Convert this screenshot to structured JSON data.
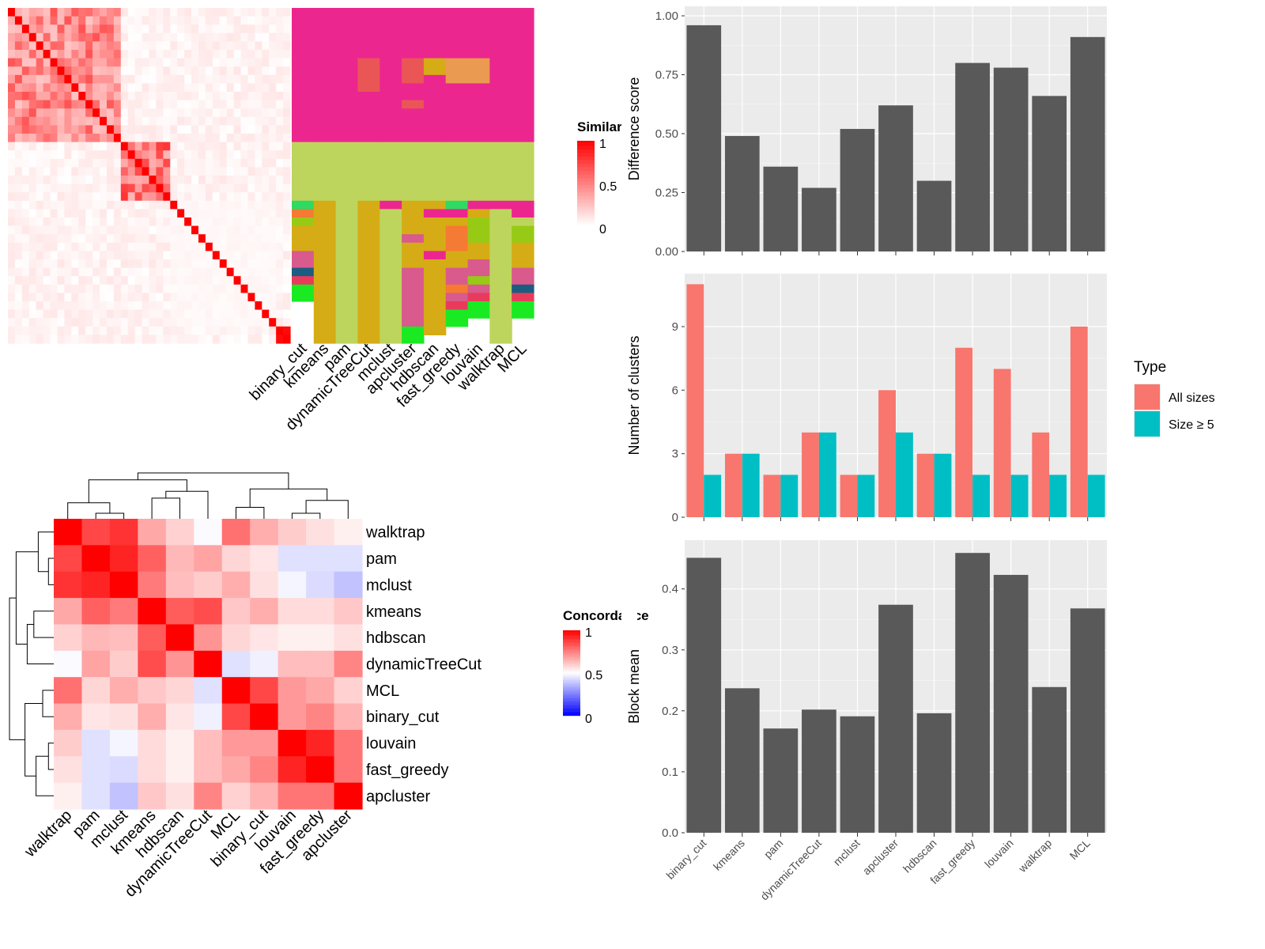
{
  "chart_data": [
    {
      "type": "heatmap",
      "id": "similarity_heatmap",
      "legend": {
        "title": "Similarity",
        "ticks": [
          "0",
          "0.5",
          "1"
        ],
        "colors": {
          "low": "#ffffff",
          "high": "#ff0000"
        }
      },
      "methods": [
        "binary_cut",
        "kmeans",
        "pam",
        "dynamicTreeCut",
        "mclust",
        "apcluster",
        "hdbscan",
        "fast_greedy",
        "louvain",
        "walktrap",
        "MCL"
      ],
      "term_blocks": [
        {
          "rows": 16,
          "inner": 0.45,
          "diag": 1.0
        },
        {
          "rows": 7,
          "inner": 0.55,
          "diag": 1.0
        },
        {
          "rows": 15,
          "inner": 0.03,
          "diag": 1.0
        },
        {
          "rows": 2,
          "inner": 0.9,
          "diag": 1.0
        }
      ],
      "background_similarity": 0.06,
      "cluster_palette": {
        "A": "#ec268f",
        "B": "#bdd55c",
        "C": "#d5ac15",
        "D": "#ea5656",
        "E": "#d9a02a",
        "F": "#2eda62",
        "G": "#f57a33",
        "H": "#97ca15",
        "I": "#d95a8c",
        "J": "#1c5c80",
        "K": "#e83b5c",
        "L": "#1aea22",
        "M": "#e04a3f",
        "N": "#eb9a52"
      },
      "assignment_runs": [
        [
          "A:16,B:7,F:1,G:1,H:1,C:3,I:2,J:1,K:1,L:2"
        ],
        [
          "A:16,B:7,C:15,C:2"
        ],
        [
          "A:16,B:7,B:15,B:2"
        ],
        [
          "A:6,D:4,A:6,B:7,C:15,C:2"
        ],
        [
          "A:16,B:7,A:1,B:14,B:2"
        ],
        [
          "A:6,D:3,A:2,D:1,A:4,B:7,C:4,I:1,C:3,I:5,I:2,L:2"
        ],
        [
          "A:6,C:2,A:8,B:7,C:1,A:1,C:4,A:1,C:1,C:6,C:2"
        ],
        [
          "A:6,N:3,A:7,B:7,F:1,A:1,C:1,G:3,C:2,I:2,G:1,I:1,K:1,L:2"
        ],
        [
          "A:6,N:3,A:7,B:7,A:1,C:1,H:3,C:2,I:2,H:1,I:1,K:1,L:2"
        ],
        [
          "A:16,B:7,A:1,B:14,B:2"
        ],
        [
          "A:16,B:7,A:1,A:1,B:1,H:2,C:3,I:2,J:1,K:1,L:2"
        ]
      ]
    },
    {
      "type": "heatmap",
      "id": "concordance_heatmap",
      "legend": {
        "title": "Concordance",
        "ticks": [
          "0",
          "0.5",
          "1"
        ],
        "colors": {
          "low": "#0000ff",
          "mid": "#ffffff",
          "high": "#ff0000"
        }
      },
      "col_labels": [
        "walktrap",
        "pam",
        "mclust",
        "kmeans",
        "hdbscan",
        "dynamicTreeCut",
        "MCL",
        "binary_cut",
        "louvain",
        "fast_greedy",
        "apcluster"
      ],
      "row_labels": [
        "walktrap",
        "pam",
        "mclust",
        "kmeans",
        "hdbscan",
        "dynamicTreeCut",
        "MCL",
        "binary_cut",
        "louvain",
        "fast_greedy",
        "apcluster"
      ],
      "values": [
        [
          1.0,
          0.86,
          0.9,
          0.67,
          0.59,
          0.49,
          0.78,
          0.66,
          0.6,
          0.56,
          0.53
        ],
        [
          0.86,
          1.0,
          0.93,
          0.81,
          0.64,
          0.68,
          0.58,
          0.55,
          0.44,
          0.44,
          0.44
        ],
        [
          0.9,
          0.93,
          1.0,
          0.76,
          0.63,
          0.6,
          0.66,
          0.56,
          0.48,
          0.43,
          0.38
        ],
        [
          0.67,
          0.81,
          0.76,
          1.0,
          0.82,
          0.85,
          0.61,
          0.66,
          0.57,
          0.57,
          0.61
        ],
        [
          0.59,
          0.64,
          0.63,
          0.82,
          1.0,
          0.71,
          0.58,
          0.55,
          0.53,
          0.53,
          0.56
        ],
        [
          0.49,
          0.68,
          0.6,
          0.85,
          0.71,
          1.0,
          0.44,
          0.47,
          0.63,
          0.63,
          0.74
        ],
        [
          0.78,
          0.58,
          0.66,
          0.61,
          0.58,
          0.44,
          1.0,
          0.86,
          0.7,
          0.67,
          0.59
        ],
        [
          0.66,
          0.55,
          0.56,
          0.66,
          0.55,
          0.47,
          0.86,
          1.0,
          0.7,
          0.74,
          0.65
        ],
        [
          0.6,
          0.44,
          0.48,
          0.57,
          0.53,
          0.63,
          0.7,
          0.7,
          1.0,
          0.93,
          0.77
        ],
        [
          0.56,
          0.44,
          0.43,
          0.57,
          0.53,
          0.63,
          0.67,
          0.74,
          0.93,
          1.0,
          0.77
        ],
        [
          0.53,
          0.44,
          0.38,
          0.61,
          0.56,
          0.74,
          0.59,
          0.65,
          0.77,
          0.77,
          1.0
        ]
      ],
      "dendrogram": {
        "order": [
          "walktrap",
          "pam",
          "mclust",
          "kmeans",
          "hdbscan",
          "dynamicTreeCut",
          "MCL",
          "binary_cut",
          "louvain",
          "fast_greedy",
          "apcluster"
        ],
        "merges": [
          [
            1,
            2,
            0.12
          ],
          [
            0,
            11,
            0.35
          ],
          [
            3,
            4,
            0.45
          ],
          [
            13,
            5,
            0.6
          ],
          [
            12,
            14,
            0.85
          ],
          [
            8,
            9,
            0.12
          ],
          [
            16,
            10,
            0.4
          ],
          [
            6,
            7,
            0.25
          ],
          [
            18,
            17,
            0.65
          ],
          [
            15,
            19,
            1.0
          ]
        ]
      }
    },
    {
      "type": "bar",
      "id": "difference_score",
      "ylabel": "Difference score",
      "categories": [
        "binary_cut",
        "kmeans",
        "pam",
        "dynamicTreeCut",
        "mclust",
        "apcluster",
        "hdbscan",
        "fast_greedy",
        "louvain",
        "walktrap",
        "MCL"
      ],
      "values": [
        0.96,
        0.49,
        0.36,
        0.27,
        0.52,
        0.62,
        0.3,
        0.8,
        0.78,
        0.66,
        0.91
      ],
      "ylim": [
        0,
        1.0
      ],
      "yticks": [
        "0.00",
        "0.25",
        "0.50",
        "0.75",
        "1.00"
      ],
      "grid": true,
      "bar_color": "#595959",
      "panel_bg": "#ebebeb"
    },
    {
      "type": "bar",
      "id": "number_of_clusters",
      "ylabel": "Number of clusters",
      "categories": [
        "binary_cut",
        "kmeans",
        "pam",
        "dynamicTreeCut",
        "mclust",
        "apcluster",
        "hdbscan",
        "fast_greedy",
        "louvain",
        "walktrap",
        "MCL"
      ],
      "series": [
        {
          "name": "All sizes",
          "color": "#f8766d",
          "values": [
            11,
            3,
            2,
            4,
            2,
            6,
            3,
            8,
            7,
            4,
            9
          ]
        },
        {
          "name": "Size ≥ 5",
          "color": "#00bfc4",
          "values": [
            2,
            3,
            2,
            4,
            2,
            4,
            3,
            2,
            2,
            2,
            2
          ]
        }
      ],
      "ylim": [
        0,
        11.5
      ],
      "yticks": [
        "0",
        "3",
        "6",
        "9"
      ],
      "legend": {
        "title": "Type",
        "position": "right"
      },
      "grid": true,
      "panel_bg": "#ebebeb"
    },
    {
      "type": "bar",
      "id": "block_mean",
      "ylabel": "Block mean",
      "categories": [
        "binary_cut",
        "kmeans",
        "pam",
        "dynamicTreeCut",
        "mclust",
        "apcluster",
        "hdbscan",
        "fast_greedy",
        "louvain",
        "walktrap",
        "MCL"
      ],
      "values": [
        0.451,
        0.237,
        0.171,
        0.202,
        0.191,
        0.374,
        0.196,
        0.459,
        0.423,
        0.239,
        0.368
      ],
      "ylim": [
        0,
        0.48
      ],
      "yticks": [
        "0.0",
        "0.1",
        "0.2",
        "0.3",
        "0.4"
      ],
      "grid": true,
      "bar_color": "#595959",
      "panel_bg": "#ebebeb"
    }
  ]
}
